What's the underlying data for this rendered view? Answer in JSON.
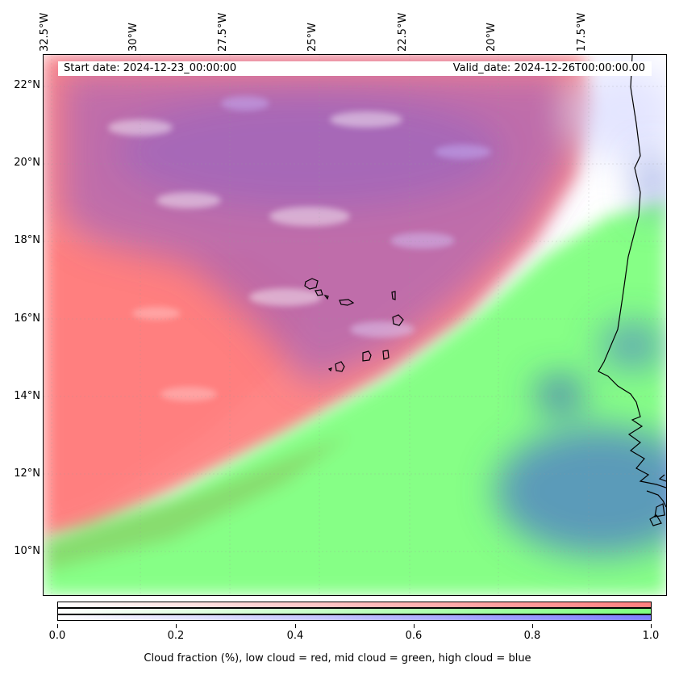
{
  "header": {
    "start_date": "Start date: 2024-12-23_00:00:00",
    "valid_date": "Valid_date: 2024-12-26T00:00:00.00"
  },
  "longitude_labels": [
    "32.5°W",
    "30°W",
    "27.5°W",
    "25°W",
    "22.5°W",
    "20°W",
    "17.5°W"
  ],
  "latitude_labels": [
    "22°N",
    "20°N",
    "18°N",
    "16°N",
    "14°N",
    "12°N",
    "10°N"
  ],
  "colorbar": {
    "ticks": [
      "0.0",
      "0.2",
      "0.4",
      "0.6",
      "0.8",
      "1.0"
    ],
    "caption": "Cloud fraction (%), low cloud = red, mid cloud = green, high cloud = blue",
    "low_color": "#ff7f7f",
    "mid_color": "#7fff7f",
    "high_color": "#7f7fff"
  },
  "map": {
    "ocean_color": "#ffffff",
    "coastline_color": "#000000"
  }
}
